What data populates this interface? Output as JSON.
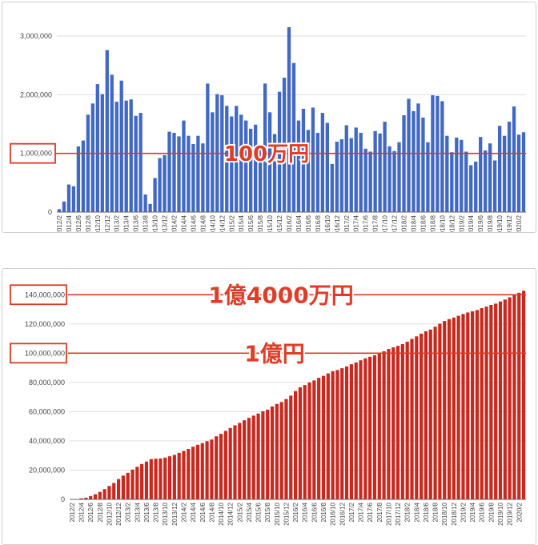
{
  "colors": {
    "top_bar": "#4169c4",
    "bottom_bar": "#c8281e",
    "marker": "#d93a26",
    "grid": "#dddddd"
  },
  "chart_data": [
    {
      "type": "bar",
      "categories": [
        "2012/2",
        "2012/3",
        "2012/4",
        "2012/5",
        "2012/6",
        "2012/7",
        "2012/8",
        "2012/9",
        "2012/10",
        "2012/11",
        "2012/12",
        "2013/1",
        "2013/2",
        "2013/3",
        "2013/4",
        "2013/5",
        "2013/6",
        "2013/7",
        "2013/8",
        "2013/9",
        "2013/10",
        "2013/11",
        "2013/12",
        "2014/1",
        "2014/2",
        "2014/3",
        "2014/4",
        "2014/5",
        "2014/6",
        "2014/7",
        "2014/8",
        "2014/9",
        "2014/10",
        "2014/11",
        "2014/12",
        "2015/1",
        "2015/2",
        "2015/3",
        "2015/4",
        "2015/5",
        "2015/6",
        "2015/7",
        "2015/8",
        "2015/9",
        "2015/10",
        "2015/11",
        "2015/12",
        "2016/1",
        "2016/2",
        "2016/3",
        "2016/4",
        "2016/5",
        "2016/6",
        "2016/7",
        "2016/8",
        "2016/9",
        "2016/10",
        "2016/11",
        "2016/12",
        "2017/1",
        "2017/2",
        "2017/3",
        "2017/4",
        "2017/5",
        "2017/6",
        "2017/7",
        "2017/8",
        "2017/9",
        "2017/10",
        "2017/11",
        "2017/12",
        "2018/1",
        "2018/2",
        "2018/3",
        "2018/4",
        "2018/5",
        "2018/6",
        "2018/7",
        "2018/8",
        "2018/9",
        "2018/10",
        "2018/11",
        "2018/12",
        "2019/1",
        "2019/2",
        "2019/3",
        "2019/4",
        "2019/5",
        "2019/6",
        "2019/7",
        "2019/8",
        "2019/9",
        "2019/10",
        "2019/11",
        "2019/12",
        "2020/1",
        "2020/2",
        "2020/3"
      ],
      "xtick_labels": [
        "2012/2",
        "2012/4",
        "2012/6",
        "2012/8",
        "2012/10",
        "2012/12",
        "2013/2",
        "2013/4",
        "2013/6",
        "2013/8",
        "2013/10",
        "2013/12",
        "2014/2",
        "2014/4",
        "2014/6",
        "2014/8",
        "2014/10",
        "2014/12",
        "2015/2",
        "2015/4",
        "2015/6",
        "2015/8",
        "2015/10",
        "2015/12",
        "2016/2",
        "2016/4",
        "2016/6",
        "2016/8",
        "2016/10",
        "2016/12",
        "2017/2",
        "2017/4",
        "2017/6",
        "2017/8",
        "2017/10",
        "2017/12",
        "2018/2",
        "2018/4",
        "2018/6",
        "2018/8",
        "2018/10",
        "2018/12",
        "2019/2",
        "2019/4",
        "2019/6",
        "2019/8",
        "2019/10",
        "2019/12",
        "2020/2"
      ],
      "values": [
        50000,
        180000,
        470000,
        440000,
        1120000,
        1220000,
        1660000,
        1850000,
        2180000,
        2010000,
        2760000,
        2340000,
        1880000,
        2240000,
        1900000,
        1920000,
        1640000,
        1690000,
        300000,
        140000,
        580000,
        920000,
        970000,
        1370000,
        1350000,
        1290000,
        1560000,
        1300000,
        1160000,
        1300000,
        1170000,
        2190000,
        1700000,
        2010000,
        1990000,
        1810000,
        1630000,
        1810000,
        1660000,
        1560000,
        1420000,
        1490000,
        1160000,
        2190000,
        1700000,
        1330000,
        2050000,
        2290000,
        3150000,
        2540000,
        1560000,
        1760000,
        1400000,
        1780000,
        1350000,
        1690000,
        1520000,
        820000,
        1200000,
        1240000,
        1480000,
        1260000,
        1440000,
        1350000,
        1080000,
        1030000,
        1380000,
        1340000,
        1540000,
        1120000,
        1040000,
        1190000,
        1650000,
        1930000,
        1720000,
        1850000,
        1610000,
        1190000,
        1990000,
        1980000,
        1890000,
        1300000,
        1020000,
        1270000,
        1230000,
        1030000,
        800000,
        860000,
        1280000,
        1050000,
        1170000,
        880000,
        1470000,
        1300000,
        1540000,
        1800000,
        1320000,
        1360000
      ],
      "yticks": [
        "0",
        "1,000,000",
        "2,000,000",
        "3,000,000"
      ],
      "ylim": [
        0,
        3300000
      ],
      "reference_line": {
        "value": 1000000,
        "label": "100万円",
        "tick_label": "1,000,000"
      }
    },
    {
      "type": "bar",
      "categories_ref": "same as first chart",
      "xtick_labels": [
        "2012/2",
        "2012/4",
        "2012/6",
        "2012/8",
        "2012/10",
        "2012/12",
        "2013/2",
        "2013/4",
        "2013/6",
        "2013/8",
        "2013/10",
        "2013/12",
        "2014/2",
        "2014/4",
        "2014/6",
        "2014/8",
        "2014/10",
        "2014/12",
        "2015/2",
        "2015/4",
        "2015/6",
        "2015/8",
        "2015/10",
        "2015/12",
        "2016/2",
        "2016/4",
        "2016/6",
        "2016/8",
        "2016/10",
        "2016/12",
        "2017/2",
        "2017/4",
        "2017/6",
        "2017/8",
        "2017/10",
        "2017/12",
        "2018/2",
        "2018/4",
        "2018/6",
        "2018/8",
        "2018/10",
        "2018/12",
        "2019/2",
        "2019/4",
        "2019/6",
        "2019/8",
        "2019/10",
        "2019/12",
        "2020/2"
      ],
      "cumulative_of_first": true,
      "yticks": [
        "0",
        "20,000,000",
        "40,000,000",
        "60,000,000",
        "80,000,000",
        "100,000,000",
        "120,000,000",
        "140,000,000"
      ],
      "ylim": [
        0,
        150000000
      ],
      "reference_lines": [
        {
          "value": 140000000,
          "label": "1億4000万円",
          "tick_label": "140,000,000"
        },
        {
          "value": 100000000,
          "label": "1億円",
          "tick_label": "100,000,000"
        }
      ]
    }
  ]
}
